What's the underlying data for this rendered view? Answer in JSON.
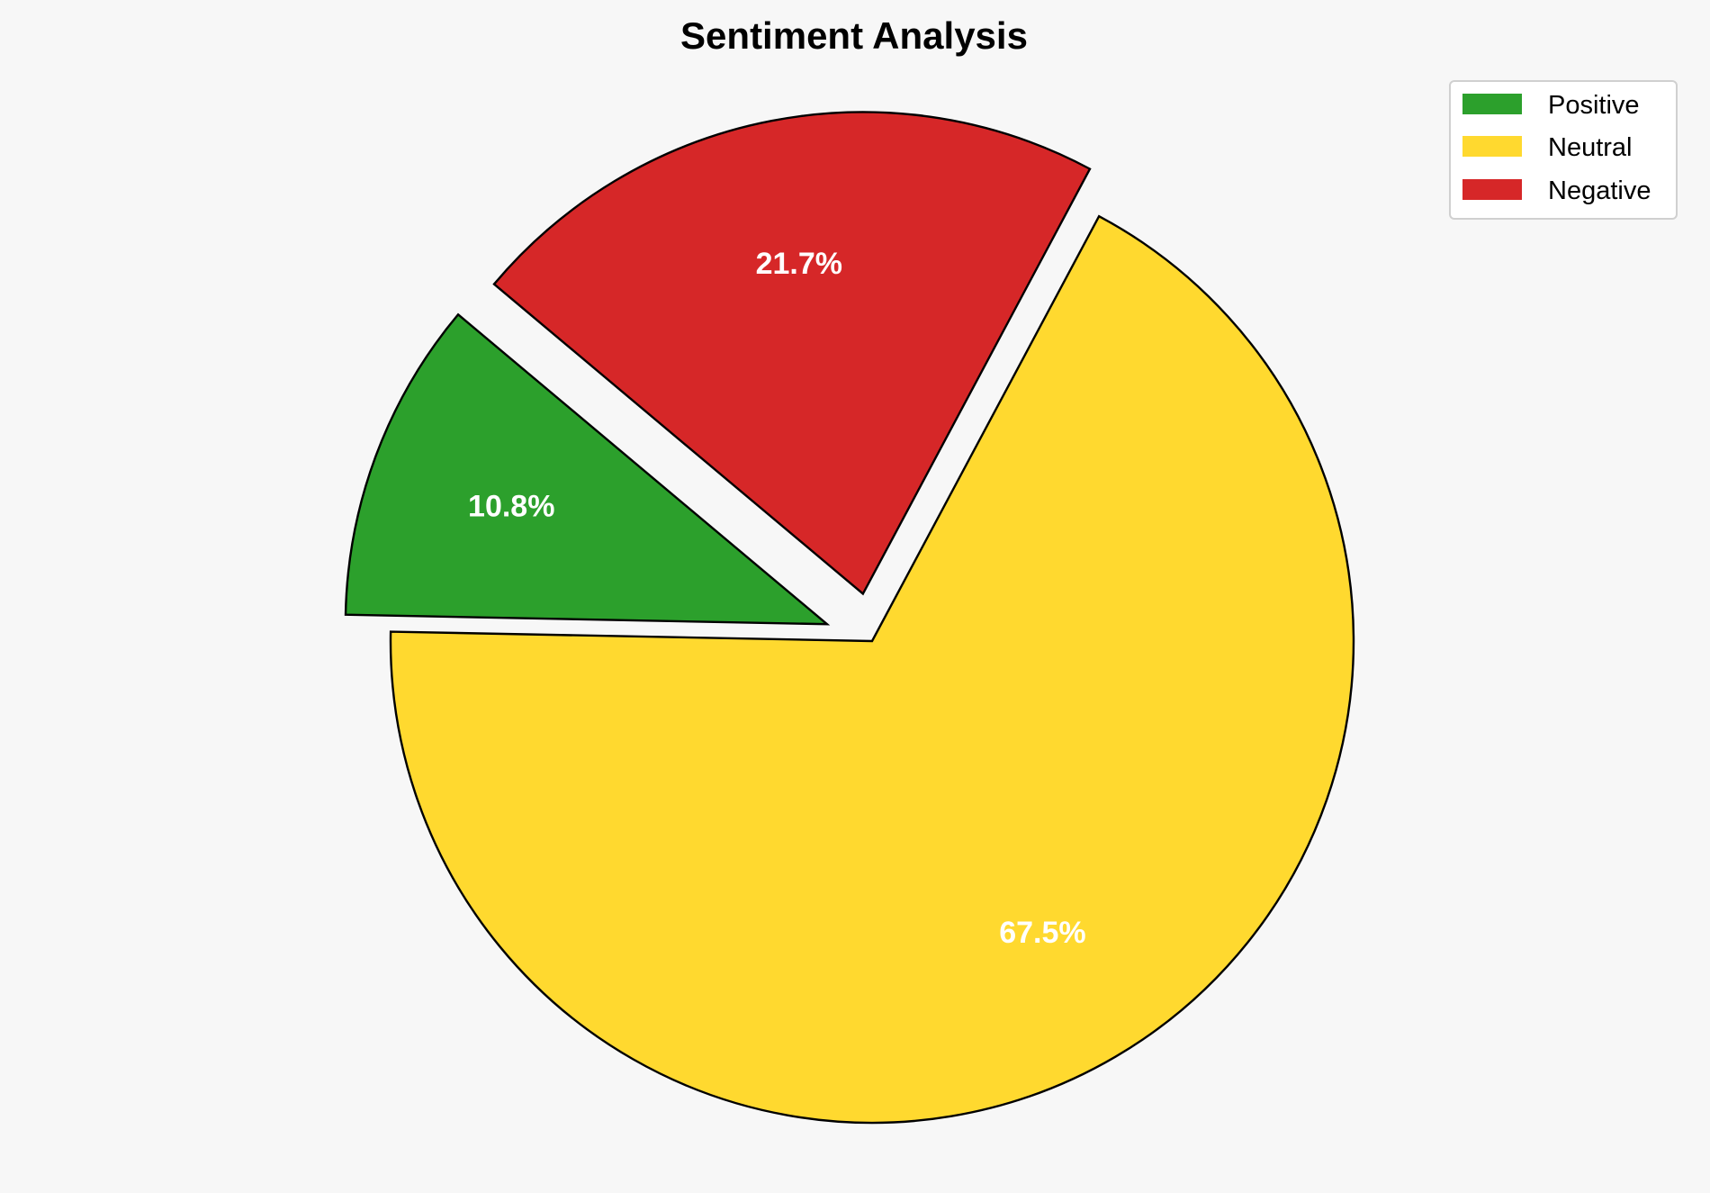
{
  "chart_data": {
    "type": "pie",
    "title": "Sentiment Analysis",
    "slices": [
      {
        "label": "Positive",
        "value": 10.8,
        "pct_label": "10.8%",
        "color": "#2ca02c",
        "explode": 0.1
      },
      {
        "label": "Neutral",
        "value": 67.5,
        "pct_label": "67.5%",
        "color": "#ffd92f",
        "explode": 0
      },
      {
        "label": "Negative",
        "value": 21.7,
        "pct_label": "21.7%",
        "color": "#d62728",
        "explode": 0.1
      }
    ],
    "start_angle": 140,
    "direction": "counterclockwise",
    "edge_color": "#000000",
    "legend_position": "top-right",
    "background": "#f7f7f7"
  }
}
